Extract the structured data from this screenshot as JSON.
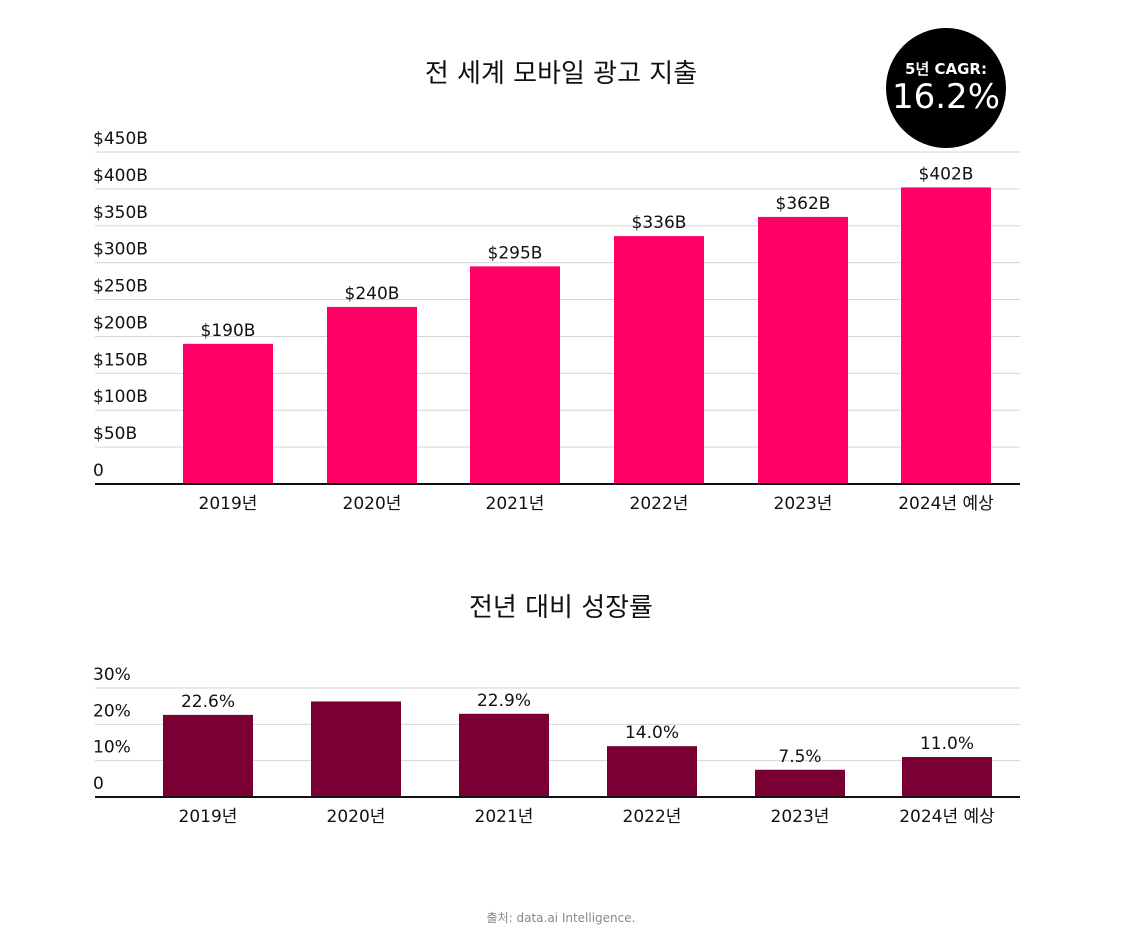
{
  "badge": {
    "label": "5년 CAGR:",
    "value": "16.2%"
  },
  "source": "출처: data.ai Intelligence.",
  "colors": {
    "spend": "#ff0066",
    "growth": "#7a0033",
    "badge": "#000000"
  },
  "chart_data": [
    {
      "type": "bar",
      "title": "전 세계 모바일 광고 지출",
      "categories": [
        "2019년",
        "2020년",
        "2021년",
        "2022년",
        "2023년",
        "2024년 예상"
      ],
      "values": [
        190,
        240,
        295,
        336,
        362,
        402
      ],
      "data_labels": [
        "$190B",
        "$240B",
        "$295B",
        "$336B",
        "$362B",
        "$402B"
      ],
      "yticks": [
        "0",
        "$50B",
        "$100B",
        "$150B",
        "$200B",
        "$250B",
        "$300B",
        "$350B",
        "$400B",
        "$450B"
      ],
      "ylim": [
        0,
        450
      ],
      "grid": true
    },
    {
      "type": "bar",
      "title": "전년 대비 성장률",
      "categories": [
        "2019년",
        "2020년",
        "2021년",
        "2022년",
        "2023년",
        "2024년 예상"
      ],
      "values": [
        22.6,
        26.3,
        22.9,
        14.0,
        7.5,
        11.0
      ],
      "data_labels": [
        "22.6%",
        "",
        "22.9%",
        "14.0%",
        "7.5%",
        "11.0%"
      ],
      "yticks": [
        "0",
        "10%",
        "20%",
        "30%"
      ],
      "ylim": [
        0,
        30
      ],
      "grid": true
    }
  ]
}
